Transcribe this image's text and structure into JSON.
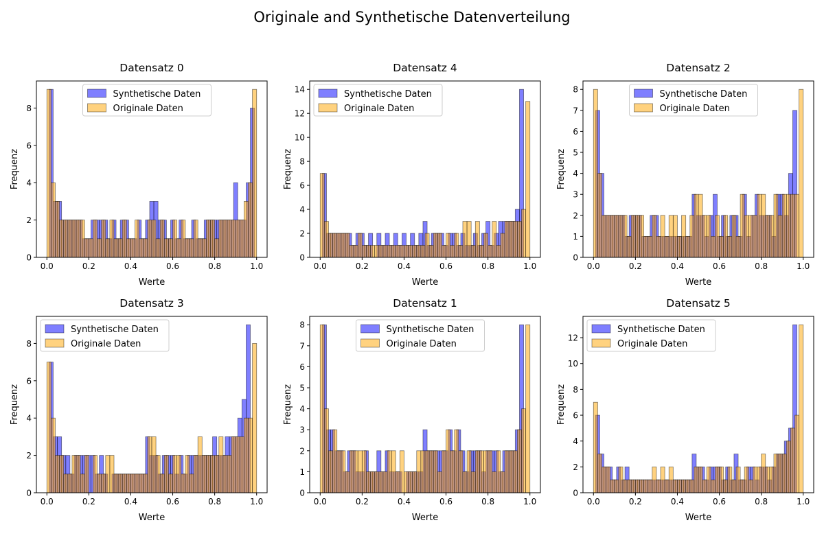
{
  "figure": {
    "title": "Originale and Synthetische Datenverteilung"
  },
  "colors": {
    "synthetic": "#0000ff",
    "original": "#ffa500",
    "edge": "#000000"
  },
  "chart_data": [
    {
      "type": "bar",
      "title": "Datensatz 0",
      "xlabel": "Werte",
      "ylabel": "Frequenz",
      "xlim": [
        -0.05,
        1.05
      ],
      "ylim": [
        0,
        9.45
      ],
      "xticks": [
        "0.0",
        "0.2",
        "0.4",
        "0.6",
        "0.8",
        "1.0"
      ],
      "yticks": [
        "0",
        "2",
        "4",
        "6",
        "8"
      ],
      "legend_position": "top-center",
      "grid": false,
      "series": [
        {
          "name": "Synthetische Daten",
          "x_start": 0.01,
          "bin_width": 0.02,
          "values": [
            9,
            3,
            3,
            2,
            2,
            2,
            2,
            2,
            1,
            1,
            2,
            2,
            2,
            2,
            1,
            2,
            1,
            2,
            2,
            1,
            1,
            2,
            1,
            2,
            3,
            3,
            2,
            2,
            1,
            2,
            1,
            2,
            1,
            1,
            2,
            1,
            1,
            2,
            2,
            2,
            2,
            2,
            2,
            2,
            4,
            2,
            2,
            4,
            8,
            0
          ]
        },
        {
          "name": "Originale Daten",
          "x_start": 0.0,
          "bin_width": 0.02,
          "values": [
            9,
            4,
            3,
            2,
            2,
            2,
            2,
            2,
            2,
            1,
            1,
            2,
            1,
            2,
            1,
            2,
            1,
            1,
            2,
            1,
            1,
            2,
            1,
            1,
            2,
            2,
            1,
            2,
            1,
            1,
            2,
            1,
            2,
            1,
            1,
            2,
            1,
            1,
            2,
            2,
            1,
            2,
            2,
            2,
            2,
            2,
            2,
            3,
            4,
            9
          ]
        }
      ]
    },
    {
      "type": "bar",
      "title": "Datensatz 4",
      "xlabel": "Werte",
      "ylabel": "Frequenz",
      "xlim": [
        -0.05,
        1.05
      ],
      "ylim": [
        0,
        14.7
      ],
      "xticks": [
        "0.0",
        "0.2",
        "0.4",
        "0.6",
        "0.8",
        "1.0"
      ],
      "yticks": [
        "0",
        "2",
        "4",
        "6",
        "8",
        "10",
        "12",
        "14"
      ],
      "legend_position": "top-left",
      "grid": false,
      "series": [
        {
          "name": "Synthetische Daten",
          "x_start": 0.01,
          "bin_width": 0.02,
          "values": [
            7,
            2,
            2,
            2,
            2,
            2,
            2,
            1,
            2,
            2,
            1,
            2,
            0,
            2,
            1,
            2,
            1,
            2,
            1,
            2,
            1,
            2,
            1,
            2,
            3,
            1,
            2,
            2,
            2,
            1,
            2,
            2,
            1,
            2,
            1,
            1,
            2,
            1,
            2,
            3,
            1,
            2,
            3,
            3,
            3,
            3,
            4,
            14,
            0,
            0
          ]
        },
        {
          "name": "Originale Daten",
          "x_start": 0.0,
          "bin_width": 0.02,
          "values": [
            7,
            3,
            2,
            2,
            2,
            2,
            2,
            1,
            1,
            2,
            1,
            1,
            1,
            1,
            1,
            1,
            1,
            1,
            1,
            1,
            1,
            1,
            1,
            1,
            1,
            2,
            1,
            2,
            2,
            1,
            2,
            1,
            2,
            1,
            3,
            3,
            1,
            3,
            1,
            2,
            1,
            3,
            1,
            2,
            3,
            3,
            3,
            3,
            4,
            13
          ]
        }
      ]
    },
    {
      "type": "bar",
      "title": "Datensatz 2",
      "xlabel": "Werte",
      "ylabel": "Frequenz",
      "xlim": [
        -0.05,
        1.05
      ],
      "ylim": [
        0,
        8.4
      ],
      "xticks": [
        "0.0",
        "0.2",
        "0.4",
        "0.6",
        "0.8",
        "1.0"
      ],
      "yticks": [
        "0",
        "1",
        "2",
        "3",
        "4",
        "5",
        "6",
        "7",
        "8"
      ],
      "legend_position": "top-center",
      "grid": false,
      "series": [
        {
          "name": "Synthetische Daten",
          "x_start": 0.01,
          "bin_width": 0.02,
          "values": [
            7,
            4,
            2,
            2,
            2,
            2,
            2,
            1,
            2,
            2,
            2,
            1,
            1,
            2,
            2,
            1,
            1,
            1,
            1,
            1,
            1,
            1,
            1,
            3,
            2,
            2,
            1,
            2,
            3,
            1,
            2,
            1,
            2,
            2,
            1,
            3,
            1,
            2,
            3,
            2,
            2,
            2,
            1,
            3,
            3,
            2,
            4,
            7,
            0,
            0
          ]
        },
        {
          "name": "Originale Daten",
          "x_start": 0.0,
          "bin_width": 0.02,
          "values": [
            8,
            4,
            2,
            2,
            2,
            2,
            2,
            2,
            1,
            2,
            2,
            2,
            1,
            1,
            2,
            1,
            2,
            1,
            2,
            2,
            1,
            2,
            1,
            2,
            3,
            3,
            2,
            2,
            1,
            2,
            1,
            2,
            1,
            2,
            1,
            3,
            2,
            2,
            2,
            3,
            3,
            2,
            2,
            3,
            2,
            3,
            3,
            3,
            3,
            8
          ]
        }
      ]
    },
    {
      "type": "bar",
      "title": "Datensatz 3",
      "xlabel": "Werte",
      "ylabel": "Frequenz",
      "xlim": [
        -0.05,
        1.05
      ],
      "ylim": [
        0,
        9.45
      ],
      "xticks": [
        "0.0",
        "0.2",
        "0.4",
        "0.6",
        "0.8",
        "1.0"
      ],
      "yticks": [
        "0",
        "2",
        "4",
        "6",
        "8"
      ],
      "legend_position": "top-left",
      "grid": false,
      "series": [
        {
          "name": "Synthetische Daten",
          "x_start": 0.01,
          "bin_width": 0.02,
          "values": [
            7,
            3,
            3,
            2,
            2,
            1,
            2,
            2,
            2,
            2,
            2,
            1,
            2,
            1,
            0,
            1,
            1,
            1,
            1,
            1,
            1,
            1,
            1,
            3,
            2,
            2,
            1,
            2,
            2,
            2,
            1,
            2,
            1,
            2,
            2,
            2,
            2,
            2,
            2,
            3,
            2,
            2,
            3,
            3,
            3,
            4,
            5,
            9,
            0,
            0
          ]
        },
        {
          "name": "Originale Daten",
          "x_start": 0.0,
          "bin_width": 0.02,
          "values": [
            7,
            4,
            2,
            2,
            1,
            1,
            2,
            2,
            1,
            2,
            0,
            2,
            1,
            1,
            2,
            2,
            1,
            1,
            1,
            1,
            1,
            1,
            1,
            1,
            3,
            3,
            2,
            1,
            2,
            1,
            2,
            2,
            1,
            2,
            1,
            2,
            3,
            2,
            2,
            2,
            2,
            3,
            2,
            2,
            3,
            3,
            3,
            4,
            4,
            8
          ]
        }
      ]
    },
    {
      "type": "bar",
      "title": "Datensatz 1",
      "xlabel": "Werte",
      "ylabel": "Frequenz",
      "xlim": [
        -0.05,
        1.05
      ],
      "ylim": [
        0,
        8.4
      ],
      "xticks": [
        "0.0",
        "0.2",
        "0.4",
        "0.6",
        "0.8",
        "1.0"
      ],
      "yticks": [
        "0",
        "1",
        "2",
        "3",
        "4",
        "5",
        "6",
        "7",
        "8"
      ],
      "legend_position": "top-center",
      "grid": false,
      "series": [
        {
          "name": "Synthetische Daten",
          "x_start": 0.01,
          "bin_width": 0.02,
          "values": [
            8,
            3,
            3,
            2,
            2,
            1,
            2,
            2,
            1,
            1,
            2,
            1,
            1,
            2,
            1,
            2,
            1,
            1,
            1,
            0,
            1,
            1,
            1,
            1,
            3,
            2,
            2,
            2,
            2,
            2,
            3,
            2,
            3,
            2,
            1,
            2,
            2,
            2,
            1,
            2,
            2,
            2,
            1,
            2,
            2,
            2,
            3,
            8,
            0,
            0
          ]
        },
        {
          "name": "Originale Daten",
          "x_start": 0.0,
          "bin_width": 0.02,
          "values": [
            8,
            4,
            2,
            3,
            2,
            2,
            1,
            2,
            2,
            2,
            2,
            1,
            1,
            1,
            1,
            1,
            2,
            2,
            1,
            2,
            1,
            1,
            1,
            2,
            2,
            2,
            2,
            2,
            1,
            2,
            3,
            2,
            3,
            2,
            1,
            2,
            1,
            2,
            2,
            2,
            2,
            1,
            2,
            1,
            2,
            2,
            2,
            3,
            4,
            8
          ]
        }
      ]
    },
    {
      "type": "bar",
      "title": "Datensatz 5",
      "xlabel": "Werte",
      "ylabel": "Frequenz",
      "xlim": [
        -0.05,
        1.05
      ],
      "ylim": [
        0,
        13.65
      ],
      "xticks": [
        "0.0",
        "0.2",
        "0.4",
        "0.6",
        "0.8",
        "1.0"
      ],
      "yticks": [
        "0",
        "2",
        "4",
        "6",
        "8",
        "10",
        "12"
      ],
      "legend_position": "top-left",
      "grid": false,
      "series": [
        {
          "name": "Synthetische Daten",
          "x_start": 0.01,
          "bin_width": 0.02,
          "values": [
            6,
            3,
            2,
            2,
            1,
            2,
            1,
            2,
            1,
            1,
            1,
            1,
            1,
            1,
            1,
            1,
            1,
            1,
            1,
            1,
            1,
            1,
            1,
            3,
            2,
            2,
            1,
            2,
            2,
            2,
            1,
            2,
            1,
            3,
            1,
            1,
            2,
            2,
            1,
            2,
            2,
            1,
            2,
            3,
            3,
            4,
            5,
            13,
            0,
            0
          ]
        },
        {
          "name": "Originale Daten",
          "x_start": 0.0,
          "bin_width": 0.02,
          "values": [
            7,
            3,
            2,
            2,
            1,
            1,
            2,
            1,
            1,
            1,
            1,
            1,
            1,
            1,
            2,
            1,
            2,
            1,
            2,
            1,
            1,
            1,
            1,
            1,
            2,
            2,
            1,
            2,
            1,
            2,
            2,
            1,
            2,
            1,
            2,
            1,
            2,
            1,
            2,
            2,
            3,
            2,
            2,
            3,
            3,
            3,
            4,
            5,
            6,
            13
          ]
        }
      ]
    }
  ]
}
